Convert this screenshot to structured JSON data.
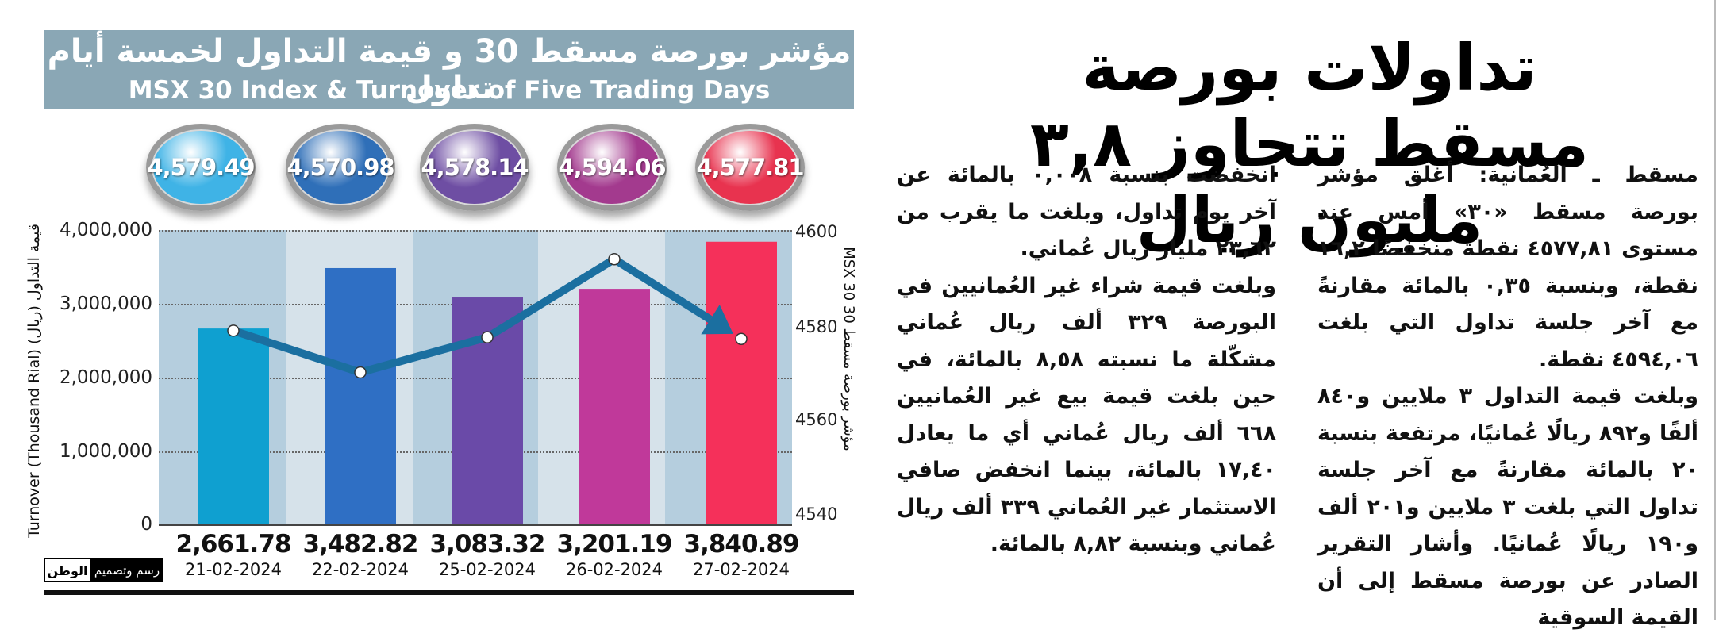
{
  "headline": "تداولات بورصة مسقط تتجاوز ٣,٨ مليون ريال",
  "article": {
    "right_column": [
      "مسقط ـ العُمانية: أغلق مؤشر بورصة مسقط «٣٠» أمس عند مستوى ٤٥٧٧,٨١ نقطة منخفضًا ١٦,٢ نقطة، وبنسبة ٠,٣٥ بالمائة مقارنةً مع آخر جلسة تداول التي بلغت ٤٥٩٤,٠٦ نقطة.",
      "وبلغت قيمة التداول ٣ ملايين و٨٤٠ ألفًا و٨٩٢ ريالًا عُمانيًا، مرتفعة بنسبة ٢٠ بالمائة مقارنةً مع آخر جلسة تداول التي بلغت ٣ ملايين و٢٠١ ألف و١٩٠ ريالًا عُمانيًا. وأشار التقرير الصادر عن بورصة مسقط إلى أن القيمة السوقية"
    ],
    "left_column": [
      "انخفضت بنسبة ٠,٠٠٨ بالمائة عن آخر يوم تداول، وبلغت ما يقرب من ٢٣,٦٢ مليار ريال عُماني.",
      "وبلغت قيمة شراء غير العُمانيين في البورصة ٣٢٩ ألف ريال عُماني مشكّلة ما نسبته ٨,٥٨ بالمائة، في حين بلغت قيمة بيع غير العُمانيين ٦٦٨ ألف ريال عُماني أي ما يعادل ١٧,٤٠ بالمائة، بينما انخفض صافي الاستثمار غير العُماني ٣٣٩ ألف ريال عُماني وبنسبة ٨,٨٢ بالمائة."
    ]
  },
  "infographic": {
    "title_ar": "مؤشر بورصة مسقط 30 و قيمة التداول لخمسة أيام تداول",
    "title_en": "MSX 30 Index & Turnover of Five Trading Days",
    "left_axis_label": "Turnover (Thousand Rial)   قيمة التداول (ريال)",
    "right_axis_label": "MSX 30   مؤشر بورصة مسقط 30",
    "credit_logo": "الوطن",
    "credit_text": "رسم وتصميم",
    "disc_colors": [
      "#3fb3e6",
      "#2f6fb8",
      "#6e4ea3",
      "#a33a8e",
      "#e8334f"
    ],
    "bar_colors": [
      "#0fa0d0",
      "#2f6fc4",
      "#6a4aa8",
      "#c0399a",
      "#f5305a"
    ],
    "line_color": "#1b6fa0"
  },
  "chart_data": {
    "type": "bar",
    "title": "مؤشر بورصة مسقط 30 و قيمة التداول لخمسة أيام تداول",
    "subtitle": "MSX 30 Index & Turnover of Five Trading Days",
    "categories": [
      "21-02-2024",
      "22-02-2024",
      "25-02-2024",
      "26-02-2024",
      "27-02-2024"
    ],
    "series": [
      {
        "name": "Turnover (Thousand Rial)",
        "type": "bar",
        "axis": "left",
        "values": [
          2661.78,
          3482.82,
          3083.32,
          3201.19,
          3840.89
        ],
        "labels": [
          "2,661.78",
          "3,482.82",
          "3,083.32",
          "3,201.19",
          "3,840.89"
        ]
      },
      {
        "name": "MSX 30",
        "type": "line",
        "axis": "right",
        "values": [
          4579.49,
          4570.98,
          4578.14,
          4594.06,
          4577.81
        ],
        "labels": [
          "4,579.49",
          "4,570.98",
          "4,578.14",
          "4,594.06",
          "4,577.81"
        ]
      }
    ],
    "left_axis": {
      "label": "Turnover (Thousand Rial)",
      "min": 0,
      "max": 4000000,
      "ticks": [
        "0",
        "1,000,000",
        "2,000,000",
        "3,000,000",
        "4,000,000"
      ]
    },
    "right_axis": {
      "label": "MSX 30",
      "min": 4540,
      "max": 4600,
      "ticks": [
        "4540",
        "4560",
        "4580",
        "4600"
      ]
    },
    "grid": true
  }
}
